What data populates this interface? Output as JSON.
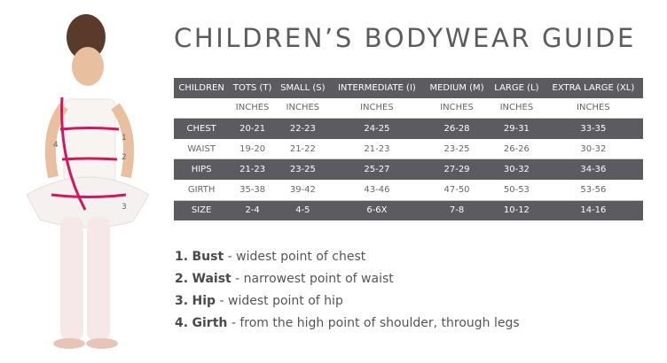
{
  "title": "CHILDREN’S BODYWEAR GUIDE",
  "table": {
    "headers": [
      "CHILDREN",
      "TOTS (T)",
      "SMALL (S)",
      "INTERMEDIATE (I)",
      "MEDIUM (M)",
      "LARGE (L)",
      "EXTRA LARGE (XL)"
    ],
    "units": [
      "",
      "INCHES",
      "INCHES",
      "INCHES",
      "INCHES",
      "INCHES",
      "INCHES"
    ],
    "rows": [
      [
        "CHEST",
        "20-21",
        "22-23",
        "24-25",
        "26-28",
        "29-31",
        "33-35"
      ],
      [
        "WAIST",
        "19-20",
        "21-22",
        "21-23",
        "23-25",
        "26-26",
        "30-32"
      ],
      [
        "HIPS",
        "21-23",
        "23-25",
        "25-27",
        "27-29",
        "30-32",
        "34-36"
      ],
      [
        "GIRTH",
        "35-38",
        "39-42",
        "43-46",
        "47-50",
        "50-53",
        "53-56"
      ],
      [
        "SIZE",
        "2-4",
        "4-5",
        "6-6X",
        "7-8",
        "10-12",
        "14-16"
      ]
    ]
  },
  "legend": [
    {
      "num": "1.",
      "term": "Bust",
      "desc": " - widest point of chest"
    },
    {
      "num": "2.",
      "term": "Waist",
      "desc": " - narrowest point of waist"
    },
    {
      "num": "3.",
      "term": "Hip",
      "desc": " - widest point of hip"
    },
    {
      "num": "4.",
      "term": "Girth",
      "desc": " - from the high point of shoulder, through legs"
    }
  ],
  "figure": {
    "labels": [
      "1",
      "2",
      "3",
      "4"
    ],
    "accent": "#d0185f"
  }
}
